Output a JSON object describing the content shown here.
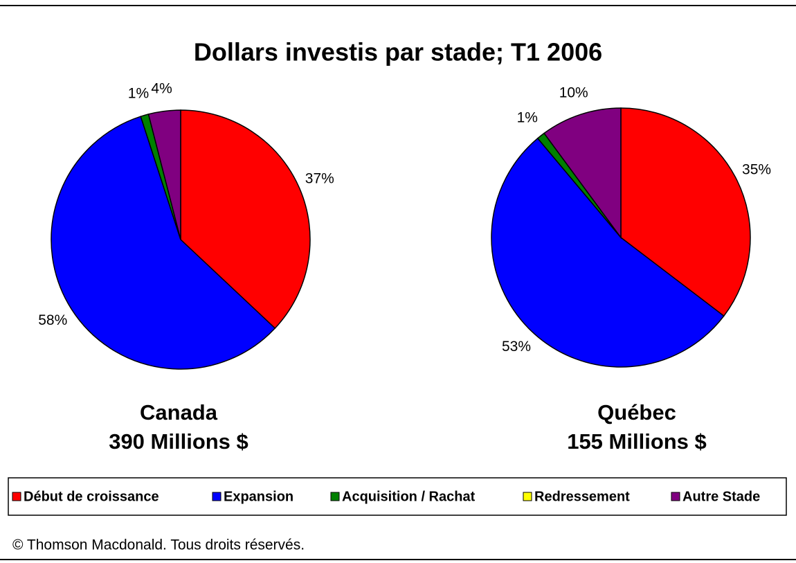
{
  "title": "Dollars investis par stade; T1 2006",
  "chart_data": [
    {
      "type": "pie",
      "title": "Canada",
      "subtitle": "390 Millions $",
      "categories": [
        "Début de croissance",
        "Expansion",
        "Acquisition / Rachat",
        "Redressement",
        "Autre Stade"
      ],
      "values": [
        37,
        58,
        1,
        0,
        4
      ],
      "value_labels": [
        "37%",
        "58%",
        "1%",
        null,
        "4%"
      ],
      "colors": [
        "#ff0000",
        "#0000ff",
        "#008000",
        "#ffff00",
        "#800080"
      ]
    },
    {
      "type": "pie",
      "title": "Québec",
      "subtitle": "155 Millions $",
      "categories": [
        "Début de croissance",
        "Expansion",
        "Acquisition / Rachat",
        "Redressement",
        "Autre Stade"
      ],
      "values": [
        35,
        53,
        1,
        0,
        10
      ],
      "value_labels": [
        "35%",
        "53%",
        "1%",
        null,
        "10%"
      ],
      "colors": [
        "#ff0000",
        "#0000ff",
        "#008000",
        "#ffff00",
        "#800080"
      ]
    }
  ],
  "footer": "© Thomson Macdonald. Tous droits réservés."
}
